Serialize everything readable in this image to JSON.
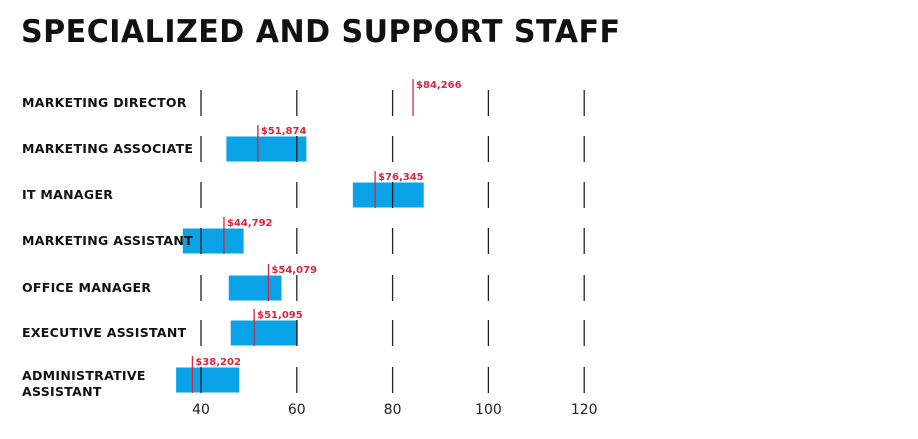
{
  "title": "SPECIALIZED AND SUPPORT STAFF",
  "chart_data": {
    "type": "bar",
    "orientation": "horizontal-range",
    "title": "SPECIALIZED AND SUPPORT STAFF",
    "xlim": [
      30,
      125
    ],
    "xticks": [
      40,
      60,
      80,
      100,
      120
    ],
    "tick_labels": [
      "40",
      "60",
      "80",
      "100",
      "120"
    ],
    "grid": true,
    "colors": {
      "range": "#0aa3e8",
      "marker": "#d7263d",
      "grid": "#222222",
      "text": "#111111"
    },
    "series": [
      {
        "categories": [
          "MARKETING DIRECTOR",
          "MARKETING ASSOCIATE",
          "IT MANAGER",
          "MARKETING ASSISTANT",
          "OFFICE MANAGER",
          "EXECUTIVE ASSISTANT",
          "ADMINISTRATIVE ASSISTANT"
        ],
        "range_low": [
          null,
          45.3,
          71.7,
          36.2,
          45.8,
          46.2,
          34.8
        ],
        "range_high": [
          null,
          62.0,
          86.5,
          48.9,
          56.8,
          60.2,
          48.0
        ],
        "values": [
          84.266,
          51.874,
          76.345,
          44.792,
          54.079,
          51.095,
          38.202
        ],
        "value_labels": [
          "$84,266",
          "$51,874",
          "$76,345",
          "$44,792",
          "$54,079",
          "$51,095",
          "$38,202"
        ]
      }
    ]
  }
}
